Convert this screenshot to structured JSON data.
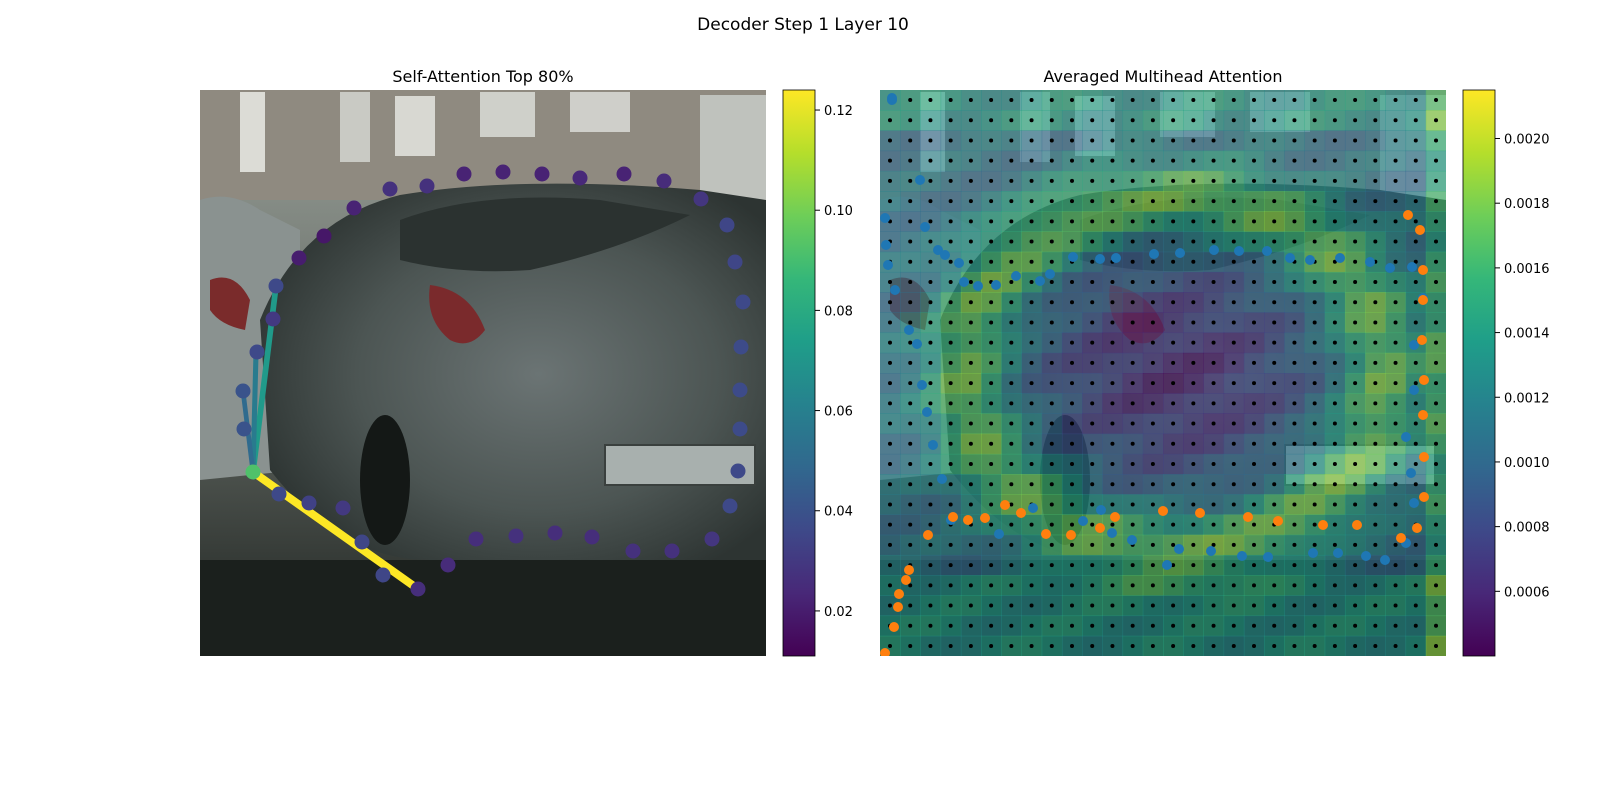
{
  "figure": {
    "title": "Decoder Step 1 Layer 10"
  },
  "colors": {
    "viridis": [
      "#440154",
      "#482878",
      "#3e4989",
      "#31688e",
      "#26828e",
      "#1f9e89",
      "#35b779",
      "#6ece58",
      "#b5de2b",
      "#fde725"
    ],
    "points_blue": "#1f77b4",
    "points_orange": "#ff7f0e",
    "grid_dots": "#000000"
  },
  "chart_data": [
    {
      "type": "scatter",
      "panel": "left",
      "title": "Self-Attention Top 80%",
      "background": "street photo: grey hatchback car parked at curb",
      "colorbar": {
        "min": 0.011,
        "max": 0.124,
        "ticks": [
          "0.02",
          "0.04",
          "0.06",
          "0.08",
          "0.10",
          "0.12"
        ],
        "tick_values": [
          0.02,
          0.04,
          0.06,
          0.08,
          0.1,
          0.12
        ]
      },
      "query_point": {
        "x": 53,
        "y": 382,
        "value": 0.092
      },
      "attention_lines": [
        {
          "to_x": 218,
          "to_y": 499,
          "value": 0.124
        },
        {
          "to_x": 76,
          "to_y": 196,
          "value": 0.072
        },
        {
          "to_x": 56,
          "to_y": 263,
          "value": 0.058
        },
        {
          "to_x": 43,
          "to_y": 301,
          "value": 0.05
        }
      ],
      "points": [
        {
          "x": 57,
          "y": 262,
          "v": 0.036
        },
        {
          "x": 73,
          "y": 229,
          "v": 0.03
        },
        {
          "x": 76,
          "y": 196,
          "v": 0.036
        },
        {
          "x": 99,
          "y": 168,
          "v": 0.02
        },
        {
          "x": 124,
          "y": 146,
          "v": 0.018
        },
        {
          "x": 154,
          "y": 118,
          "v": 0.022
        },
        {
          "x": 190,
          "y": 99,
          "v": 0.027
        },
        {
          "x": 227,
          "y": 96,
          "v": 0.027
        },
        {
          "x": 264,
          "y": 84,
          "v": 0.022
        },
        {
          "x": 303,
          "y": 82,
          "v": 0.022
        },
        {
          "x": 342,
          "y": 84,
          "v": 0.022
        },
        {
          "x": 380,
          "y": 88,
          "v": 0.024
        },
        {
          "x": 424,
          "y": 84,
          "v": 0.022
        },
        {
          "x": 464,
          "y": 91,
          "v": 0.025
        },
        {
          "x": 501,
          "y": 109,
          "v": 0.029
        },
        {
          "x": 527,
          "y": 135,
          "v": 0.035
        },
        {
          "x": 535,
          "y": 172,
          "v": 0.035
        },
        {
          "x": 543,
          "y": 212,
          "v": 0.036
        },
        {
          "x": 541,
          "y": 257,
          "v": 0.037
        },
        {
          "x": 540,
          "y": 300,
          "v": 0.037
        },
        {
          "x": 540,
          "y": 339,
          "v": 0.037
        },
        {
          "x": 538,
          "y": 381,
          "v": 0.036
        },
        {
          "x": 530,
          "y": 416,
          "v": 0.036
        },
        {
          "x": 512,
          "y": 449,
          "v": 0.029
        },
        {
          "x": 472,
          "y": 461,
          "v": 0.027
        },
        {
          "x": 433,
          "y": 461,
          "v": 0.027
        },
        {
          "x": 392,
          "y": 447,
          "v": 0.026
        },
        {
          "x": 355,
          "y": 443,
          "v": 0.026
        },
        {
          "x": 316,
          "y": 446,
          "v": 0.027
        },
        {
          "x": 276,
          "y": 449,
          "v": 0.026
        },
        {
          "x": 248,
          "y": 475,
          "v": 0.025
        },
        {
          "x": 183,
          "y": 485,
          "v": 0.035
        },
        {
          "x": 162,
          "y": 452,
          "v": 0.035
        },
        {
          "x": 143,
          "y": 418,
          "v": 0.03
        },
        {
          "x": 109,
          "y": 413,
          "v": 0.033
        },
        {
          "x": 79,
          "y": 404,
          "v": 0.036
        },
        {
          "x": 218,
          "y": 499,
          "v": 0.026
        },
        {
          "x": 43,
          "y": 301,
          "v": 0.04
        },
        {
          "x": 44,
          "y": 339,
          "v": 0.04
        }
      ]
    },
    {
      "type": "heatmap",
      "panel": "right",
      "title": "Averaged Multihead Attention",
      "background": "same street photo blended with attention heatmap",
      "colorbar": {
        "min": 0.0004,
        "max": 0.00215,
        "ticks": [
          "0.0006",
          "0.0008",
          "0.0010",
          "0.0012",
          "0.0014",
          "0.0016",
          "0.0018",
          "0.0020"
        ],
        "tick_values": [
          0.0006,
          0.0008,
          0.001,
          0.0012,
          0.0014,
          0.0016,
          0.0018,
          0.002
        ]
      },
      "grid_points": {
        "rows": 28,
        "cols": 28
      },
      "series": [
        {
          "color": "blue",
          "points": [
            [
              12,
              10
            ],
            [
              12,
              8
            ],
            [
              40,
              90
            ],
            [
              45,
              137
            ],
            [
              58,
              160
            ],
            [
              65,
              165
            ],
            [
              79,
              173
            ],
            [
              84,
              192
            ],
            [
              98,
              196
            ],
            [
              116,
              195
            ],
            [
              136,
              186
            ],
            [
              160,
              191
            ],
            [
              170,
              184
            ],
            [
              193,
              167
            ],
            [
              220,
              169
            ],
            [
              236,
              168
            ],
            [
              274,
              164
            ],
            [
              300,
              163
            ],
            [
              334,
              160
            ],
            [
              359,
              161
            ],
            [
              387,
              161
            ],
            [
              410,
              168
            ],
            [
              430,
              170
            ],
            [
              460,
              168
            ],
            [
              490,
              172
            ],
            [
              510,
              178
            ],
            [
              532,
              177
            ],
            [
              543,
              208
            ],
            [
              534,
              255
            ],
            [
              534,
              300
            ],
            [
              526,
              347
            ],
            [
              531,
              383
            ],
            [
              534,
              413
            ],
            [
              526,
              453
            ],
            [
              505,
              470
            ],
            [
              486,
              466
            ],
            [
              458,
              463
            ],
            [
              433,
              463
            ],
            [
              388,
              467
            ],
            [
              362,
              466
            ],
            [
              331,
              461
            ],
            [
              299,
              459
            ],
            [
              287,
              475
            ],
            [
              252,
              450
            ],
            [
              232,
              443
            ],
            [
              221,
              420
            ],
            [
              203,
              431
            ],
            [
              153,
              418
            ],
            [
              119,
              444
            ],
            [
              71,
              430
            ],
            [
              62,
              389
            ],
            [
              53,
              355
            ],
            [
              47,
              322
            ],
            [
              42,
              295
            ],
            [
              37,
              254
            ],
            [
              29,
              240
            ],
            [
              15,
              200
            ],
            [
              8,
              175
            ],
            [
              6,
              155
            ],
            [
              5,
              128
            ]
          ]
        },
        {
          "color": "orange",
          "points": [
            [
              528,
              125
            ],
            [
              540,
              140
            ],
            [
              543,
              180
            ],
            [
              543,
              210
            ],
            [
              542,
              250
            ],
            [
              544,
              290
            ],
            [
              543,
              325
            ],
            [
              544,
              367
            ],
            [
              544,
              407
            ],
            [
              537,
              438
            ],
            [
              521,
              448
            ],
            [
              477,
              435
            ],
            [
              443,
              435
            ],
            [
              398,
              431
            ],
            [
              368,
              427
            ],
            [
              320,
              423
            ],
            [
              283,
              421
            ],
            [
              235,
              427
            ],
            [
              220,
              438
            ],
            [
              191,
              445
            ],
            [
              166,
              444
            ],
            [
              141,
              423
            ],
            [
              125,
              415
            ],
            [
              105,
              428
            ],
            [
              88,
              430
            ],
            [
              73,
              427
            ],
            [
              48,
              445
            ],
            [
              29,
              480
            ],
            [
              26,
              490
            ],
            [
              19,
              504
            ],
            [
              18,
              517
            ],
            [
              14,
              537
            ],
            [
              5,
              563
            ],
            [
              0,
              599
            ]
          ]
        }
      ]
    }
  ]
}
